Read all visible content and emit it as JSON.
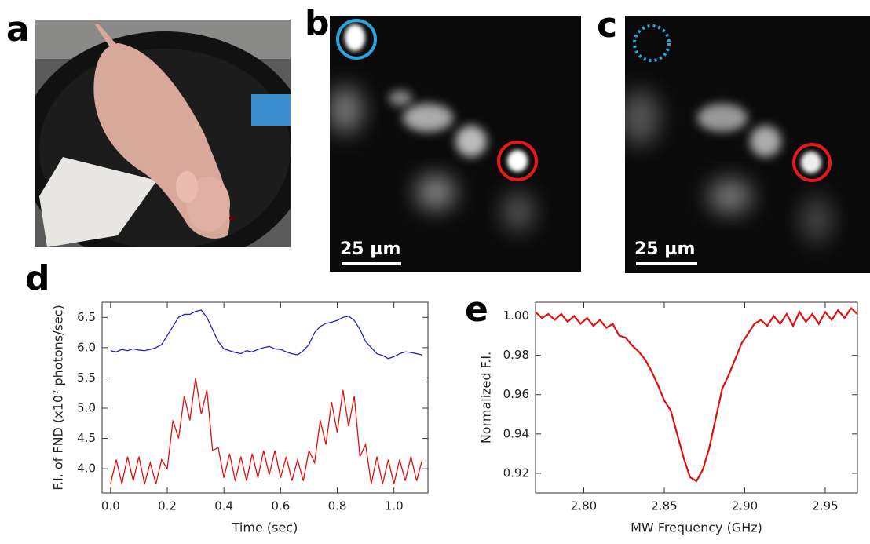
{
  "figure": {
    "panel_labels": [
      "a",
      "b",
      "c",
      "d",
      "e"
    ],
    "scale_bars": [
      "25 µm",
      "25 µm"
    ]
  },
  "chart_data": [
    {
      "type": "line",
      "x_label": "Time (sec)",
      "y_label": "F.I. of FND (x10⁷ photons/sec)",
      "xlim": [
        -0.03,
        1.12
      ],
      "ylim": [
        3.6,
        6.75
      ],
      "xticks": [
        {
          "value": 0,
          "label": "0.0"
        },
        0.2,
        0.4,
        0.6,
        0.8,
        {
          "value": 1,
          "label": "1.0"
        }
      ],
      "yticks": [
        {
          "value": 4,
          "label": "4.0"
        },
        4.5,
        {
          "value": 5,
          "label": "5.0"
        },
        5.5,
        {
          "value": 6,
          "label": "6.0"
        },
        6.5
      ],
      "x": [
        0,
        0.02,
        0.04,
        0.06,
        0.08,
        0.1,
        0.12,
        0.14,
        0.16,
        0.18,
        0.2,
        0.22,
        0.24,
        0.26,
        0.28,
        0.3,
        0.32,
        0.34,
        0.36,
        0.38,
        0.4,
        0.42,
        0.44,
        0.46,
        0.48,
        0.5,
        0.52,
        0.54,
        0.56,
        0.58,
        0.6,
        0.62,
        0.64,
        0.66,
        0.68,
        0.7,
        0.72,
        0.74,
        0.76,
        0.78,
        0.8,
        0.82,
        0.84,
        0.86,
        0.88,
        0.9,
        0.92,
        0.94,
        0.96,
        0.98,
        1,
        1.02,
        1.04,
        1.06,
        1.08,
        1.1
      ],
      "series": [
        {
          "color": "#2222cc",
          "values": [
            5.95,
            5.93,
            5.97,
            5.95,
            5.98,
            5.96,
            5.95,
            5.97,
            6.0,
            6.05,
            6.2,
            6.35,
            6.5,
            6.55,
            6.55,
            6.6,
            6.62,
            6.5,
            6.3,
            6.1,
            5.98,
            5.95,
            5.92,
            5.9,
            5.95,
            5.93,
            5.97,
            6.0,
            6.02,
            5.98,
            5.97,
            5.93,
            5.9,
            5.88,
            5.95,
            6.05,
            6.25,
            6.35,
            6.4,
            6.42,
            6.45,
            6.5,
            6.52,
            6.45,
            6.3,
            6.1,
            6.0,
            5.9,
            5.87,
            5.82,
            5.85,
            5.9,
            5.93,
            5.92,
            5.9,
            5.88
          ]
        },
        {
          "color": "#e01010",
          "values": [
            3.75,
            4.15,
            3.75,
            4.2,
            3.8,
            4.2,
            3.75,
            4.1,
            3.75,
            4.15,
            4.0,
            4.8,
            4.5,
            5.2,
            4.8,
            5.5,
            4.9,
            5.3,
            4.3,
            4.35,
            3.85,
            4.25,
            3.8,
            4.2,
            3.8,
            4.25,
            3.85,
            4.3,
            3.9,
            4.3,
            3.85,
            4.2,
            3.8,
            4.15,
            3.8,
            4.3,
            4.1,
            4.8,
            4.4,
            5.1,
            4.6,
            5.3,
            4.7,
            5.2,
            4.2,
            4.4,
            3.75,
            4.2,
            3.75,
            4.15,
            3.75,
            4.15,
            3.8,
            4.2,
            3.8,
            4.15
          ]
        }
      ]
    },
    {
      "type": "line",
      "x_label": "MW Frequency (GHz)",
      "y_label": "Normalized  F.I.",
      "xlim": [
        2.77,
        2.97
      ],
      "ylim": [
        0.91,
        1.007
      ],
      "xticks": [
        {
          "value": 2.8,
          "label": "2.80"
        },
        2.85,
        {
          "value": 2.9,
          "label": "2.90"
        },
        2.95
      ],
      "yticks": [
        0.92,
        0.94,
        0.96,
        0.98,
        {
          "value": 1,
          "label": "1.00"
        }
      ],
      "x": [
        2.77,
        2.774,
        2.778,
        2.782,
        2.786,
        2.79,
        2.794,
        2.798,
        2.802,
        2.806,
        2.81,
        2.814,
        2.818,
        2.822,
        2.826,
        2.83,
        2.834,
        2.838,
        2.842,
        2.846,
        2.85,
        2.854,
        2.858,
        2.862,
        2.866,
        2.87,
        2.874,
        2.878,
        2.882,
        2.886,
        2.89,
        2.894,
        2.898,
        2.902,
        2.906,
        2.91,
        2.914,
        2.918,
        2.922,
        2.926,
        2.93,
        2.934,
        2.938,
        2.942,
        2.946,
        2.95,
        2.954,
        2.958,
        2.962,
        2.966,
        2.97
      ],
      "series": [
        {
          "color": "#e01010",
          "values": [
            1.002,
            0.999,
            1.001,
            0.998,
            1.001,
            0.997,
            1.0,
            0.996,
            0.999,
            0.995,
            0.998,
            0.994,
            0.996,
            0.99,
            0.989,
            0.985,
            0.982,
            0.978,
            0.972,
            0.965,
            0.957,
            0.952,
            0.94,
            0.928,
            0.918,
            0.916,
            0.922,
            0.933,
            0.948,
            0.963,
            0.97,
            0.978,
            0.986,
            0.991,
            0.996,
            0.998,
            0.995,
            1.0,
            0.996,
            1.001,
            0.995,
            1.002,
            0.997,
            1.001,
            0.996,
            1.002,
            0.998,
            1.003,
            0.999,
            1.004,
            1.001
          ]
        }
      ]
    }
  ]
}
